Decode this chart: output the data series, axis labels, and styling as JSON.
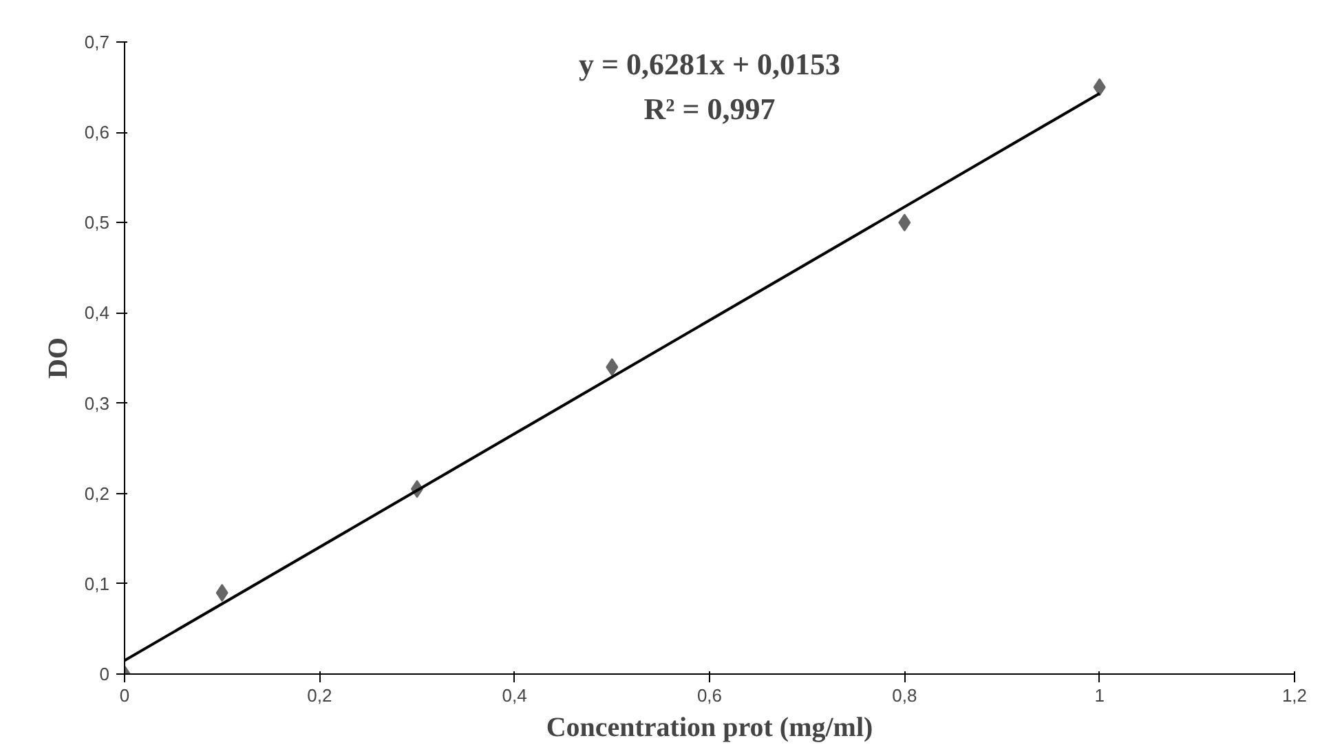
{
  "chart_data": {
    "type": "scatter",
    "xlabel": "Concentration prot (mg/ml)",
    "ylabel": "DO",
    "series": [
      {
        "color": "#666666",
        "marker": "diamond",
        "x": [
          0,
          0.1,
          0.3,
          0.5,
          0.8,
          1.0
        ],
        "values": [
          0,
          0.09,
          0.205,
          0.34,
          0.5,
          0.65
        ]
      },
      {
        "type": "line",
        "color": "#000000",
        "line_style": "solid",
        "x": [
          0,
          1.0
        ],
        "values": [
          0.015,
          0.643
        ]
      }
    ],
    "xlim": [
      0,
      1.2
    ],
    "ylim": [
      0,
      0.7
    ],
    "xticks": [
      0,
      {
        "value": 0.2,
        "label": "0,2"
      },
      {
        "value": 0.4,
        "label": "0,4"
      },
      {
        "value": 0.6,
        "label": "0,6"
      },
      {
        "value": 0.8,
        "label": "0,8"
      },
      1,
      {
        "value": 1.2,
        "label": "1,2"
      }
    ],
    "yticks": [
      0,
      {
        "value": 0.1,
        "label": "0,1"
      },
      {
        "value": 0.2,
        "label": "0,2"
      },
      {
        "value": 0.3,
        "label": "0,3"
      },
      {
        "value": 0.4,
        "label": "0,4"
      },
      {
        "value": 0.5,
        "label": "0,5"
      },
      {
        "value": 0.6,
        "label": "0,6"
      },
      {
        "value": 0.7,
        "label": "0,7"
      }
    ],
    "annotations": [
      "y = 0,6281x + 0,0153",
      "R² = 0,997"
    ],
    "grid": false
  }
}
